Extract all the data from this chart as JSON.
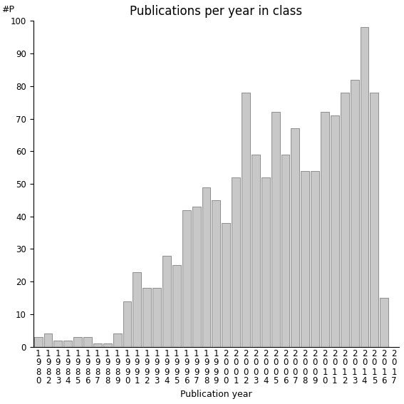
{
  "title": "Publications per year in class",
  "xlabel": "Publication year",
  "ylabel": "#P",
  "categories": [
    "1980",
    "1982",
    "1983",
    "1984",
    "1985",
    "1986",
    "1987",
    "1988",
    "1989",
    "1990",
    "1991",
    "1992",
    "1993",
    "1994",
    "1995",
    "1996",
    "1997",
    "1998",
    "1999",
    "2000",
    "2001",
    "2002",
    "2003",
    "2004",
    "2005",
    "2006",
    "2007",
    "2008",
    "2009",
    "2010",
    "2011",
    "2012",
    "2013",
    "2014",
    "2015",
    "2016",
    "2017"
  ],
  "values": [
    3,
    4,
    2,
    2,
    3,
    3,
    1,
    1,
    4,
    14,
    23,
    18,
    18,
    28,
    25,
    42,
    43,
    49,
    45,
    38,
    52,
    78,
    59,
    52,
    72,
    59,
    67,
    54,
    54,
    72,
    71,
    78,
    82,
    98,
    78,
    15,
    0
  ],
  "bar_color": "#c8c8c8",
  "bar_edge_color": "#808080",
  "ylim": [
    0,
    100
  ],
  "yticks": [
    0,
    10,
    20,
    30,
    40,
    50,
    60,
    70,
    80,
    90,
    100
  ],
  "background_color": "#ffffff",
  "title_fontsize": 12,
  "label_fontsize": 9,
  "tick_fontsize": 8.5
}
